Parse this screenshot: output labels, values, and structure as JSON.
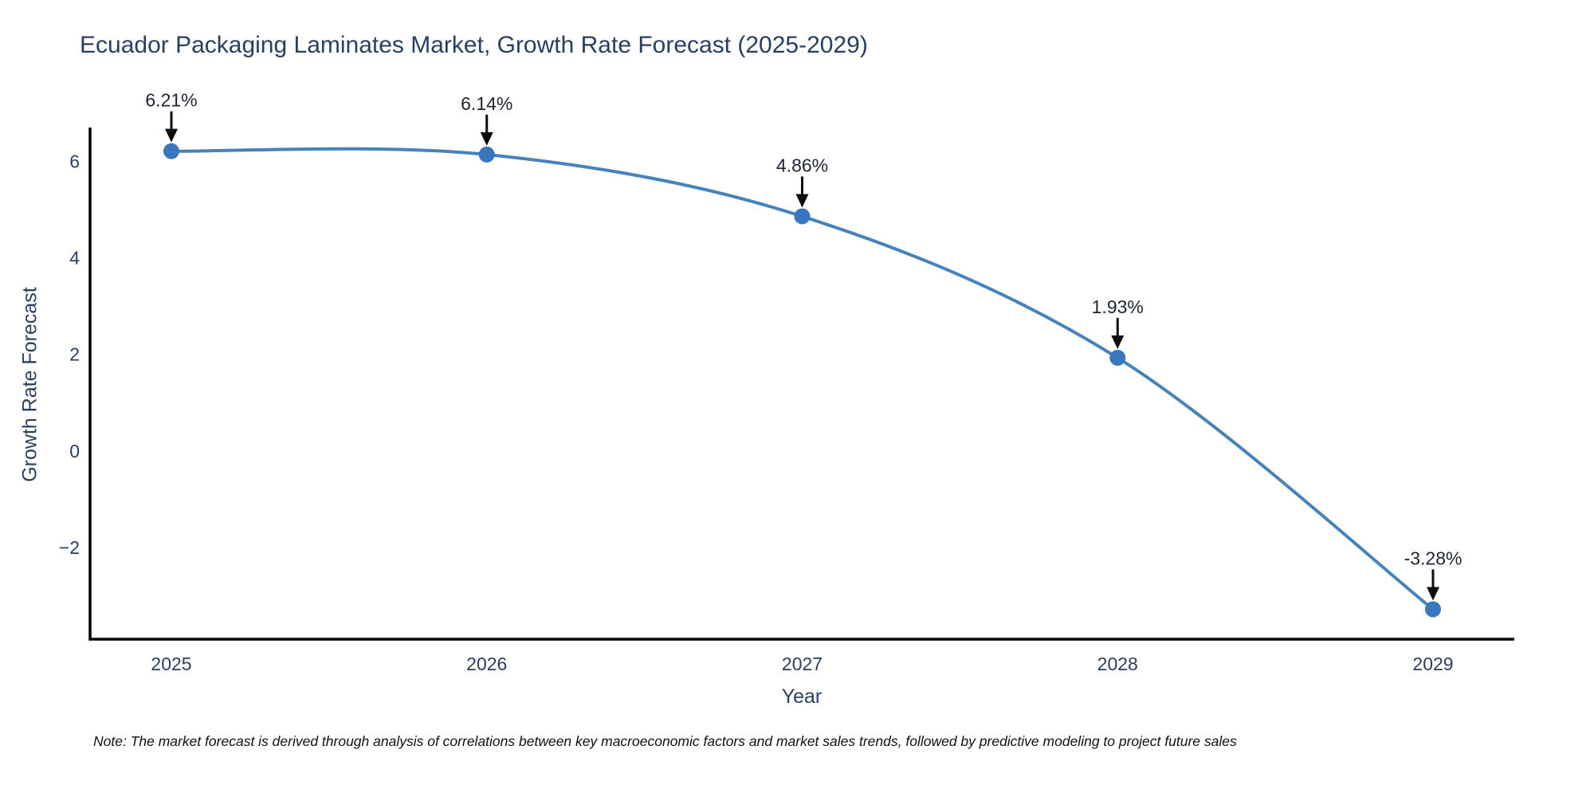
{
  "note": "Note: The market forecast is derived through analysis of correlations between key macroeconomic factors and market sales trends, followed by predictive modeling to project future sales",
  "chart_data": {
    "type": "line",
    "title": "Ecuador Packaging Laminates Market, Growth Rate Forecast (2025-2029)",
    "x": [
      2025,
      2026,
      2027,
      2028,
      2029
    ],
    "values": [
      6.21,
      6.14,
      4.86,
      1.93,
      -3.28
    ],
    "labels": [
      "6.21%",
      "6.14%",
      "4.86%",
      "1.93%",
      "-3.28%"
    ],
    "xlabel": "Year",
    "ylabel": "Growth Rate Forecast",
    "yticks": [
      6,
      4,
      2,
      0,
      -2
    ],
    "ylim": [
      -3.9,
      6.7
    ],
    "line_shape": "spline",
    "grid": false,
    "legend_position": "none",
    "line_color": "#4683bb",
    "marker_color": "#3a76bd",
    "arrow_color": "#0d0d0d",
    "axis_color": "#000000",
    "title_color": "#2a3f5f"
  }
}
